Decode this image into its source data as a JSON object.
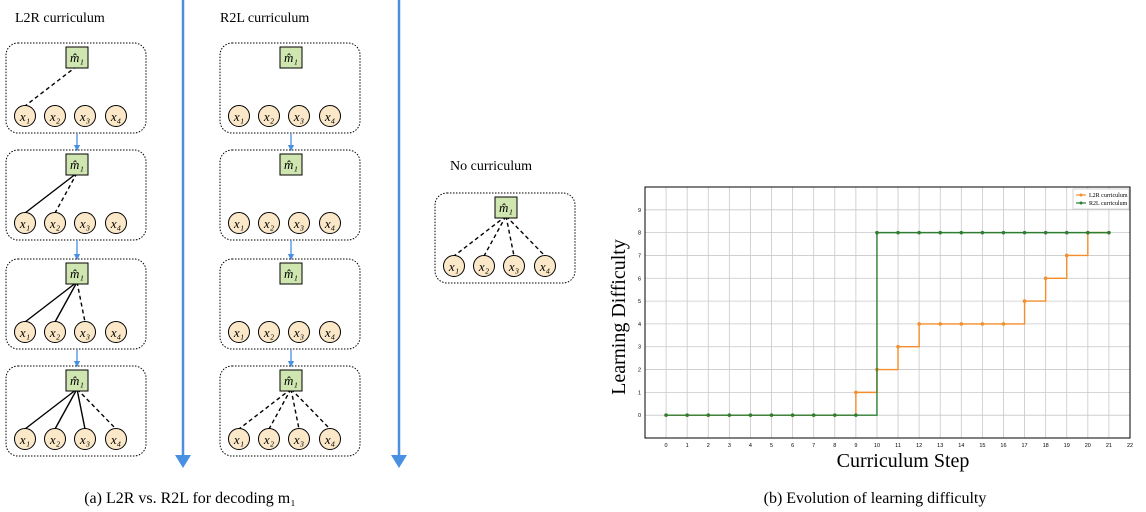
{
  "panel_a": {
    "l2r_title": "L2R curriculum",
    "r2l_title": "R2L curriculum",
    "none_title": "No curriculum",
    "caption": "(a) L2R vs. R2L for decoding m₁",
    "root_label": "m̂₁",
    "leaf_labels": [
      "x₁",
      "x₂",
      "x₃",
      "x₄"
    ],
    "colors": {
      "root_fill": "#cfe6b0",
      "leaf_fill": "#fbe8c8",
      "arrow": "#4a90e2"
    }
  },
  "panel_b": {
    "caption": "(b) Evolution of learning difficulty"
  },
  "chart_data": {
    "type": "line",
    "xlabel": "Curriculum Step",
    "ylabel": "Learning Difficulty",
    "xlim": [
      -1,
      22
    ],
    "ylim": [
      -1,
      10
    ],
    "xticks": [
      0,
      1,
      2,
      3,
      4,
      5,
      6,
      7,
      8,
      9,
      10,
      11,
      12,
      13,
      14,
      15,
      16,
      17,
      18,
      19,
      20,
      21,
      22
    ],
    "yticks": [
      0,
      1,
      2,
      3,
      4,
      5,
      6,
      7,
      8,
      9
    ],
    "grid": true,
    "legend_position": "top-right",
    "step": true,
    "series": [
      {
        "name": "L2R curriculum",
        "color": "#f28e2b",
        "x": [
          0,
          1,
          2,
          3,
          4,
          5,
          6,
          7,
          8,
          9,
          10,
          11,
          12,
          13,
          14,
          15,
          16,
          17,
          18,
          19,
          20,
          21
        ],
        "y": [
          0,
          0,
          0,
          0,
          0,
          0,
          0,
          0,
          0,
          1,
          2,
          3,
          4,
          4,
          4,
          4,
          4,
          5,
          6,
          7,
          8,
          8
        ]
      },
      {
        "name": "R2L curriculum",
        "color": "#2e7d32",
        "x": [
          0,
          1,
          2,
          3,
          4,
          5,
          6,
          7,
          8,
          9,
          10,
          11,
          12,
          13,
          14,
          15,
          16,
          17,
          18,
          19,
          20,
          21
        ],
        "y": [
          0,
          0,
          0,
          0,
          0,
          0,
          0,
          0,
          0,
          0,
          8,
          8,
          8,
          8,
          8,
          8,
          8,
          8,
          8,
          8,
          8,
          8
        ]
      }
    ]
  }
}
